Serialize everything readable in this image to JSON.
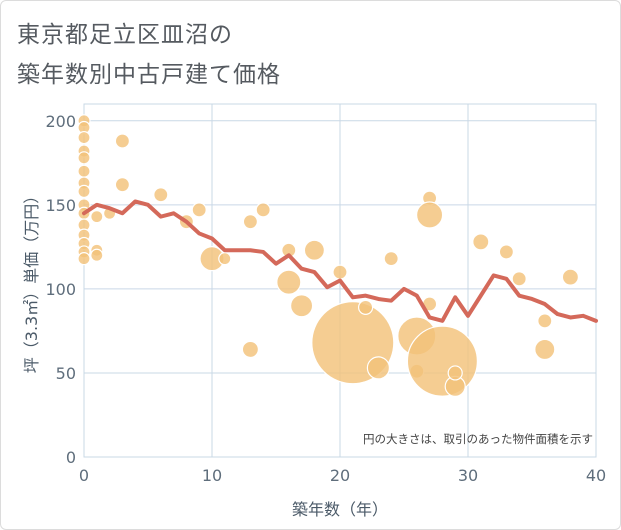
{
  "title_line1": "東京都足立区皿沼の",
  "title_line2": "築年数別中古戸建て価格",
  "chart_data": {
    "type": "scatter",
    "title": "東京都足立区皿沼の築年数別中古戸建て価格",
    "xlabel": "築年数（年）",
    "ylabel": "坪（3.3㎡）単価（万円）",
    "xlim": [
      0,
      40
    ],
    "ylim": [
      0,
      210
    ],
    "xticks": [
      0,
      10,
      20,
      30,
      40
    ],
    "yticks": [
      0,
      50,
      100,
      150,
      200
    ],
    "grid": true,
    "note": "円の大きさは、取引のあった物件面積を示す",
    "colors": {
      "bubble": "#f3c27a",
      "bubble_stroke": "#ffffff",
      "line": "#d4695a",
      "grid": "#c9d8e6"
    },
    "bubbles": [
      {
        "x": 0,
        "y": 200,
        "s": 6
      },
      {
        "x": 0,
        "y": 196,
        "s": 6
      },
      {
        "x": 0,
        "y": 190,
        "s": 6
      },
      {
        "x": 0,
        "y": 182,
        "s": 6
      },
      {
        "x": 0,
        "y": 178,
        "s": 6
      },
      {
        "x": 0,
        "y": 170,
        "s": 6
      },
      {
        "x": 0,
        "y": 163,
        "s": 6
      },
      {
        "x": 0,
        "y": 158,
        "s": 6
      },
      {
        "x": 0,
        "y": 150,
        "s": 6
      },
      {
        "x": 0,
        "y": 145,
        "s": 6
      },
      {
        "x": 0,
        "y": 138,
        "s": 6
      },
      {
        "x": 0,
        "y": 132,
        "s": 6
      },
      {
        "x": 0,
        "y": 127,
        "s": 6
      },
      {
        "x": 0,
        "y": 122,
        "s": 6
      },
      {
        "x": 0,
        "y": 118,
        "s": 6
      },
      {
        "x": 1,
        "y": 143,
        "s": 6
      },
      {
        "x": 1,
        "y": 123,
        "s": 6
      },
      {
        "x": 1,
        "y": 120,
        "s": 6
      },
      {
        "x": 2,
        "y": 145,
        "s": 6
      },
      {
        "x": 3,
        "y": 188,
        "s": 7
      },
      {
        "x": 3,
        "y": 162,
        "s": 7
      },
      {
        "x": 6,
        "y": 156,
        "s": 7
      },
      {
        "x": 8,
        "y": 140,
        "s": 7
      },
      {
        "x": 9,
        "y": 147,
        "s": 7
      },
      {
        "x": 10,
        "y": 118,
        "s": 12
      },
      {
        "x": 11,
        "y": 118,
        "s": 6
      },
      {
        "x": 13,
        "y": 140,
        "s": 7
      },
      {
        "x": 13,
        "y": 64,
        "s": 8
      },
      {
        "x": 14,
        "y": 147,
        "s": 7
      },
      {
        "x": 16,
        "y": 123,
        "s": 7
      },
      {
        "x": 16,
        "y": 104,
        "s": 12
      },
      {
        "x": 17,
        "y": 90,
        "s": 11
      },
      {
        "x": 18,
        "y": 123,
        "s": 10
      },
      {
        "x": 20,
        "y": 110,
        "s": 7
      },
      {
        "x": 21,
        "y": 68,
        "s": 41
      },
      {
        "x": 22,
        "y": 89,
        "s": 7
      },
      {
        "x": 23,
        "y": 53,
        "s": 11
      },
      {
        "x": 24,
        "y": 118,
        "s": 7
      },
      {
        "x": 26,
        "y": 72,
        "s": 19
      },
      {
        "x": 26,
        "y": 51,
        "s": 7
      },
      {
        "x": 27,
        "y": 154,
        "s": 7
      },
      {
        "x": 27,
        "y": 144,
        "s": 13
      },
      {
        "x": 27,
        "y": 91,
        "s": 7
      },
      {
        "x": 28,
        "y": 57,
        "s": 35
      },
      {
        "x": 29,
        "y": 42,
        "s": 10
      },
      {
        "x": 29,
        "y": 50,
        "s": 7
      },
      {
        "x": 31,
        "y": 128,
        "s": 8
      },
      {
        "x": 33,
        "y": 122,
        "s": 7
      },
      {
        "x": 34,
        "y": 106,
        "s": 7
      },
      {
        "x": 36,
        "y": 81,
        "s": 7
      },
      {
        "x": 36,
        "y": 64,
        "s": 10
      },
      {
        "x": 38,
        "y": 107,
        "s": 8
      }
    ],
    "series": [
      {
        "type": "line",
        "x": [
          0,
          1,
          2,
          3,
          4,
          5,
          6,
          7,
          8,
          9,
          10,
          11,
          12,
          13,
          14,
          15,
          16,
          17,
          18,
          19,
          20,
          21,
          22,
          23,
          24,
          25,
          26,
          27,
          28,
          29,
          30,
          31,
          32,
          33,
          34,
          35,
          36,
          37,
          38,
          39,
          40
        ],
        "values": [
          145,
          150,
          148,
          145,
          152,
          150,
          143,
          145,
          140,
          133,
          130,
          123,
          123,
          123,
          122,
          115,
          120,
          112,
          110,
          101,
          105,
          95,
          96,
          94,
          93,
          100,
          96,
          83,
          81,
          95,
          84,
          96,
          108,
          106,
          96,
          94,
          91,
          85,
          83,
          84,
          81
        ]
      }
    ]
  }
}
